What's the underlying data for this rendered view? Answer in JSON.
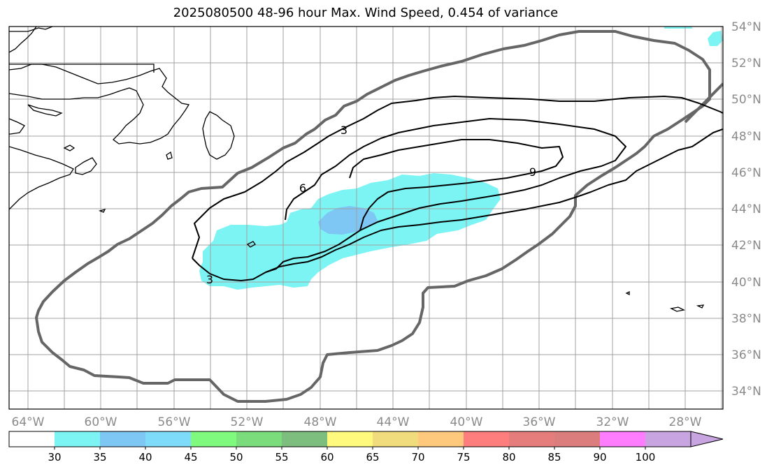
{
  "title": "2025080500 48-96 hour Max. Wind Speed, 0.454 of variance",
  "map": {
    "lat_labels": [
      "54°N",
      "52°N",
      "50°N",
      "48°N",
      "46°N",
      "44°N",
      "42°N",
      "40°N",
      "38°N",
      "36°N",
      "34°N"
    ],
    "lon_labels": [
      "64°W",
      "60°W",
      "56°W",
      "52°W",
      "48°W",
      "44°W",
      "40°W",
      "36°W",
      "32°W",
      "28°W"
    ],
    "contour_labels": [
      "3",
      "6",
      "9",
      "3"
    ],
    "colors": {
      "grid": "#a0a0a0",
      "coast": "#000000",
      "outer_contour": "#666666",
      "inner_contour": "#000000",
      "shade_30": "#7df4f4",
      "shade_35": "#7ec6f4"
    }
  },
  "colorbar": {
    "ticks": [
      "30",
      "35",
      "40",
      "45",
      "50",
      "55",
      "60",
      "65",
      "70",
      "75",
      "80",
      "85",
      "90",
      "100"
    ],
    "colors": [
      "#ffffff",
      "#7df4f4",
      "#7ec6f4",
      "#7edcfa",
      "#7ffa7f",
      "#7bdc7b",
      "#7dbd7d",
      "#fffa7d",
      "#f0dc7d",
      "#fec87d",
      "#fe7d7d",
      "#e67d7d",
      "#dc7d7d",
      "#fe7dfe",
      "#c8a5e0"
    ]
  }
}
